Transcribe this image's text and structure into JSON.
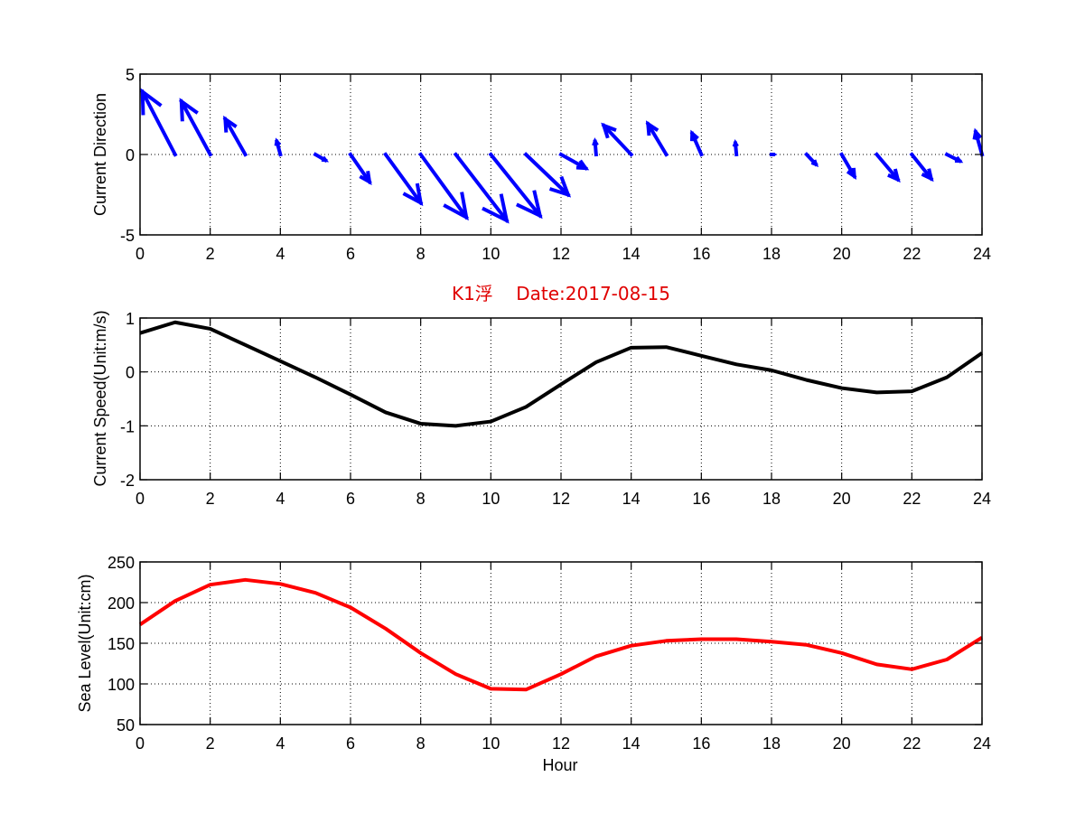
{
  "figure_title": "K1浮    Date:2017-08-15",
  "colors": {
    "title": "#e00000",
    "arrows": "#0000ff",
    "speed_line": "#000000",
    "sea_level_line": "#ff0000"
  },
  "chart_data": [
    {
      "type": "quiver",
      "title": "",
      "xlabel": "",
      "ylabel": "Current Direction",
      "xlim": [
        0,
        24
      ],
      "ylim": [
        -5,
        5
      ],
      "xticks": [
        "0",
        "2",
        "4",
        "6",
        "8",
        "10",
        "12",
        "14",
        "16",
        "18",
        "20",
        "22",
        "24"
      ],
      "yticks": [
        "-5",
        "0",
        "5"
      ],
      "grid": true,
      "x": [
        0,
        1,
        2,
        3,
        4,
        5,
        6,
        7,
        8,
        9,
        10,
        11,
        12,
        13,
        14,
        15,
        16,
        17,
        18,
        19,
        20,
        21,
        22,
        23,
        24
      ],
      "u": [
        0,
        -0.93,
        -0.82,
        -0.57,
        -0.1,
        0.28,
        0.54,
        1.0,
        1.3,
        1.45,
        1.4,
        1.2,
        0.7,
        -0.03,
        -0.78,
        -0.52,
        -0.26,
        -0.03,
        0.05,
        0.26,
        0.36,
        0.6,
        0.55,
        0.36,
        -0.18
      ],
      "v": [
        0,
        3.9,
        3.3,
        2.2,
        0.8,
        -0.35,
        -1.7,
        -3.0,
        -3.9,
        -4.1,
        -3.8,
        -2.5,
        -0.85,
        0.8,
        1.8,
        1.9,
        1.3,
        0.7,
        0,
        -0.6,
        -1.35,
        -1.55,
        -1.5,
        -0.4,
        1.4
      ]
    },
    {
      "type": "line",
      "title": "K1浮    Date:2017-08-15",
      "xlabel": "",
      "ylabel": "Current Speed(Unit:m/s)",
      "xlim": [
        0,
        24
      ],
      "ylim": [
        -2,
        1
      ],
      "xticks": [
        "0",
        "2",
        "4",
        "6",
        "8",
        "10",
        "12",
        "14",
        "16",
        "18",
        "20",
        "22",
        "24"
      ],
      "yticks": [
        "-2",
        "-1",
        "0",
        "1"
      ],
      "grid": true,
      "x": [
        0,
        1,
        2,
        3,
        4,
        5,
        6,
        7,
        8,
        9,
        10,
        11,
        12,
        13,
        14,
        15,
        16,
        17,
        18,
        19,
        20,
        21,
        22,
        23,
        24
      ],
      "series": [
        {
          "name": "Current Speed",
          "values": [
            0.72,
            0.92,
            0.8,
            0.5,
            0.2,
            -0.1,
            -0.42,
            -0.75,
            -0.96,
            -1.0,
            -0.92,
            -0.65,
            -0.23,
            0.18,
            0.45,
            0.46,
            0.3,
            0.14,
            0.03,
            -0.15,
            -0.3,
            -0.38,
            -0.36,
            -0.1,
            0.35
          ]
        }
      ]
    },
    {
      "type": "line",
      "title": "",
      "xlabel": "Hour",
      "ylabel": "Sea Level(Unit:cm)",
      "xlim": [
        0,
        24
      ],
      "ylim": [
        50,
        250
      ],
      "xticks": [
        "0",
        "2",
        "4",
        "6",
        "8",
        "10",
        "12",
        "14",
        "16",
        "18",
        "20",
        "22",
        "24"
      ],
      "yticks": [
        "50",
        "100",
        "150",
        "200",
        "250"
      ],
      "grid": true,
      "x": [
        0,
        1,
        2,
        3,
        4,
        5,
        6,
        7,
        8,
        9,
        10,
        11,
        12,
        13,
        14,
        15,
        16,
        17,
        18,
        19,
        20,
        21,
        22,
        23,
        24
      ],
      "series": [
        {
          "name": "Sea Level",
          "values": [
            173,
            202,
            222,
            228,
            223,
            212,
            194,
            168,
            138,
            112,
            94,
            93,
            112,
            134,
            147,
            153,
            155,
            155,
            152,
            148,
            138,
            124,
            118,
            130,
            157
          ]
        }
      ]
    }
  ]
}
